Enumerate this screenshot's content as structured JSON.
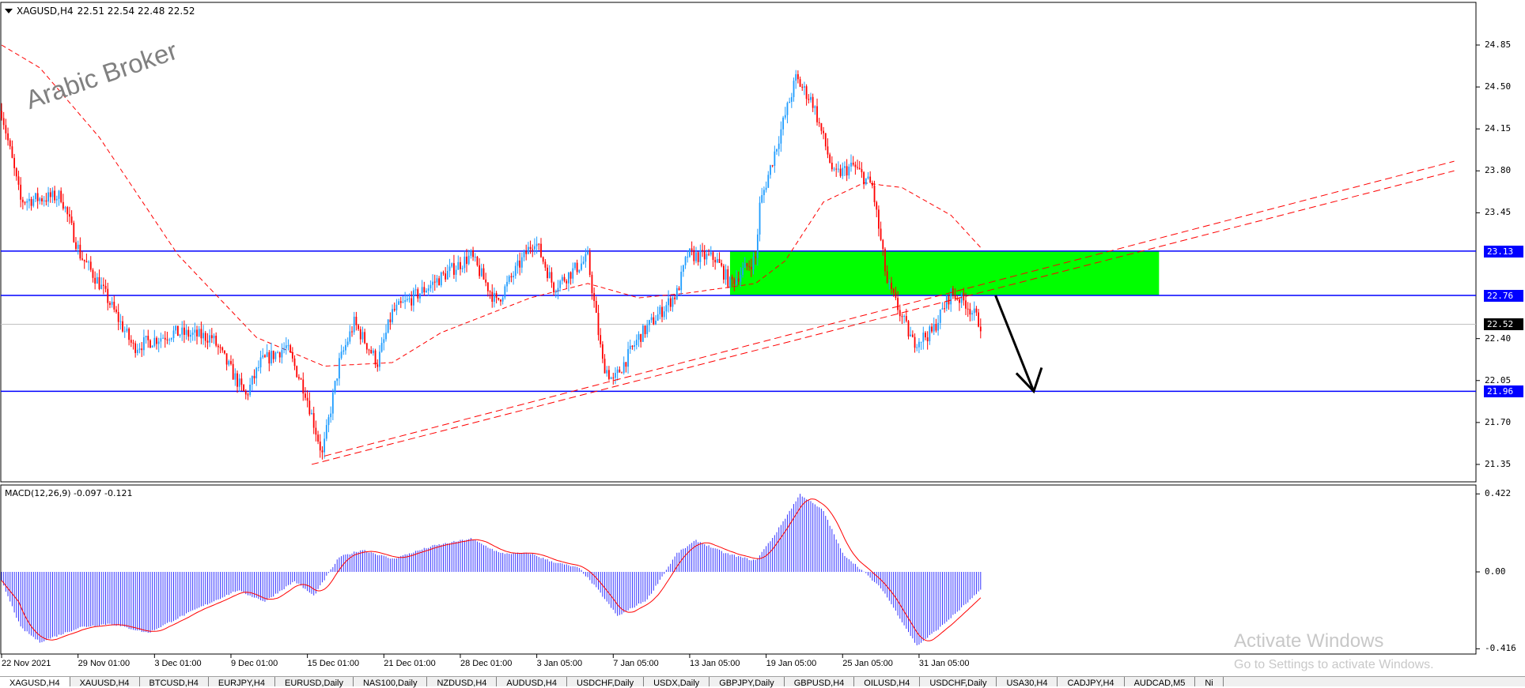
{
  "header": {
    "symbol": "XAGUSD,H4",
    "ohlc": "22.51 22.54 22.48 22.52"
  },
  "watermark": "Arabic Broker",
  "colors": {
    "bull": "#1e9cff",
    "bear": "#ff0000",
    "hline": "#0000ff",
    "zone": "#00ff00",
    "ma": "#ff0000",
    "macd_hist": "#3333ff",
    "macd_signal": "#ff0000"
  },
  "chart_data": {
    "type": "candlestick",
    "price_ticks": [
      "24.85",
      "24.50",
      "24.15",
      "23.80",
      "23.45",
      "22.40",
      "22.05",
      "21.70",
      "21.35"
    ],
    "price_range": [
      21.35,
      24.85
    ],
    "horizontal_lines": [
      {
        "price": 23.13,
        "label": "23.13"
      },
      {
        "price": 22.76,
        "label": "22.76"
      },
      {
        "price": 21.96,
        "label": "21.96"
      }
    ],
    "current_price": {
      "price": 22.52,
      "label": "22.52"
    },
    "date_ticks": [
      "22 Nov 2021",
      "29 Nov 01:00",
      "3 Dec 01:00",
      "9 Dec 01:00",
      "15 Dec 01:00",
      "21 Dec 01:00",
      "28 Dec 01:00",
      "3 Jan 05:00",
      "7 Jan 05:00",
      "13 Jan 05:00",
      "19 Jan 05:00",
      "25 Jan 05:00",
      "31 Jan 05:00"
    ],
    "bars_per_date_tick": 36,
    "close_path": [
      [
        0,
        24.3
      ],
      [
        9,
        23.55
      ],
      [
        28,
        23.59
      ],
      [
        37,
        23.1
      ],
      [
        46,
        22.86
      ],
      [
        62,
        22.33
      ],
      [
        81,
        22.45
      ],
      [
        99,
        22.41
      ],
      [
        115,
        21.92
      ],
      [
        122,
        22.2
      ],
      [
        134,
        22.33
      ],
      [
        143,
        21.96
      ],
      [
        151,
        21.43
      ],
      [
        159,
        22.2
      ],
      [
        166,
        22.53
      ],
      [
        177,
        22.2
      ],
      [
        184,
        22.62
      ],
      [
        203,
        22.86
      ],
      [
        221,
        23.09
      ],
      [
        233,
        22.7
      ],
      [
        251,
        23.23
      ],
      [
        260,
        22.83
      ],
      [
        276,
        23.07
      ],
      [
        283,
        22.2
      ],
      [
        288,
        22.04
      ],
      [
        300,
        22.41
      ],
      [
        318,
        22.78
      ],
      [
        323,
        23.1
      ],
      [
        336,
        23.07
      ],
      [
        343,
        22.86
      ],
      [
        355,
        23.07
      ],
      [
        357,
        23.51
      ],
      [
        366,
        24.08
      ],
      [
        374,
        24.57
      ],
      [
        382,
        24.37
      ],
      [
        392,
        23.76
      ],
      [
        401,
        23.84
      ],
      [
        410,
        23.67
      ],
      [
        417,
        22.86
      ],
      [
        429,
        22.37
      ],
      [
        438,
        22.45
      ],
      [
        447,
        22.78
      ],
      [
        454,
        22.7
      ],
      [
        461,
        22.52
      ]
    ],
    "moving_average_path": [
      [
        0,
        24.85
      ],
      [
        18,
        24.66
      ],
      [
        46,
        24.08
      ],
      [
        83,
        23.1
      ],
      [
        120,
        22.41
      ],
      [
        152,
        22.17
      ],
      [
        184,
        22.2
      ],
      [
        207,
        22.45
      ],
      [
        249,
        22.74
      ],
      [
        276,
        22.86
      ],
      [
        300,
        22.74
      ],
      [
        323,
        22.78
      ],
      [
        355,
        22.86
      ],
      [
        369,
        23.05
      ],
      [
        387,
        23.54
      ],
      [
        406,
        23.7
      ],
      [
        424,
        23.66
      ],
      [
        447,
        23.43
      ],
      [
        461,
        23.16
      ]
    ],
    "trendlines": [
      {
        "from": [
          146,
          21.35
        ],
        "to": [
          684,
          23.8
        ]
      },
      {
        "from": [
          152,
          21.42
        ],
        "to": [
          684,
          23.88
        ]
      }
    ],
    "zone": {
      "from_bar": 343,
      "to_bar": 545,
      "top": 23.13,
      "bottom": 22.76
    },
    "arrow": {
      "from": [
        468,
        22.76
      ],
      "to": [
        486,
        21.96
      ]
    },
    "macd": {
      "label": "MACD(12,26,9) -0.097 -0.121",
      "ticks": [
        "0.422",
        "0.00",
        "-0.416"
      ],
      "range": [
        -0.416,
        0.422
      ],
      "histogram_path": [
        [
          0,
          -0.05
        ],
        [
          9,
          -0.3
        ],
        [
          18,
          -0.38
        ],
        [
          37,
          -0.3
        ],
        [
          51,
          -0.28
        ],
        [
          69,
          -0.33
        ],
        [
          92,
          -0.2
        ],
        [
          111,
          -0.1
        ],
        [
          124,
          -0.16
        ],
        [
          138,
          -0.05
        ],
        [
          147,
          -0.13
        ],
        [
          159,
          0.08
        ],
        [
          170,
          0.12
        ],
        [
          184,
          0.07
        ],
        [
          203,
          0.14
        ],
        [
          221,
          0.18
        ],
        [
          235,
          0.1
        ],
        [
          249,
          0.1
        ],
        [
          258,
          0.06
        ],
        [
          272,
          0.02
        ],
        [
          281,
          -0.1
        ],
        [
          290,
          -0.24
        ],
        [
          304,
          -0.15
        ],
        [
          318,
          0.1
        ],
        [
          327,
          0.17
        ],
        [
          341,
          0.1
        ],
        [
          355,
          0.06
        ],
        [
          364,
          0.2
        ],
        [
          376,
          0.42
        ],
        [
          387,
          0.33
        ],
        [
          396,
          0.1
        ],
        [
          406,
          0.0
        ],
        [
          415,
          -0.1
        ],
        [
          431,
          -0.4
        ],
        [
          442,
          -0.3
        ],
        [
          461,
          -0.1
        ]
      ],
      "signal_period": 9
    }
  },
  "tabs": [
    "XAGUSD,H4",
    "XAUUSD,H4",
    "BTCUSD,H4",
    "EURJPY,H4",
    "EURUSD,Daily",
    "NAS100,Daily",
    "NZDUSD,H4",
    "AUDUSD,H4",
    "USDCHF,Daily",
    "USDX,Daily",
    "GBPJPY,Daily",
    "GBPUSD,H4",
    "OILUSD,H4",
    "USDCHF,Daily",
    "USA30,H4",
    "CADJPY,H4",
    "AUDCAD,M5",
    "Ni"
  ],
  "windows_notice": {
    "title": "Activate Windows",
    "subtitle": "Go to Settings to activate Windows."
  }
}
